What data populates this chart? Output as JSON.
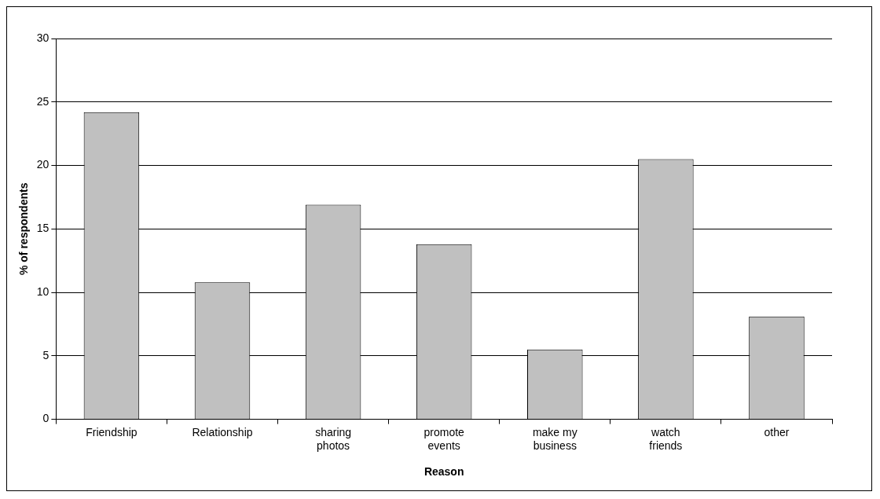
{
  "chart_data": {
    "type": "bar",
    "xlabel": "Reason",
    "ylabel": "% of respondents",
    "categories": [
      "Friendship",
      "Relationship",
      "sharing photos",
      "promote events",
      "make my business",
      "watch friends",
      "other"
    ],
    "values": [
      24.2,
      10.8,
      16.9,
      13.8,
      5.5,
      20.5,
      8.1
    ],
    "color": "#c0c0c0",
    "ylim": [
      0,
      30
    ],
    "yticks": [
      0,
      5,
      10,
      15,
      20,
      25,
      30
    ],
    "grid": "y",
    "legend": false
  }
}
